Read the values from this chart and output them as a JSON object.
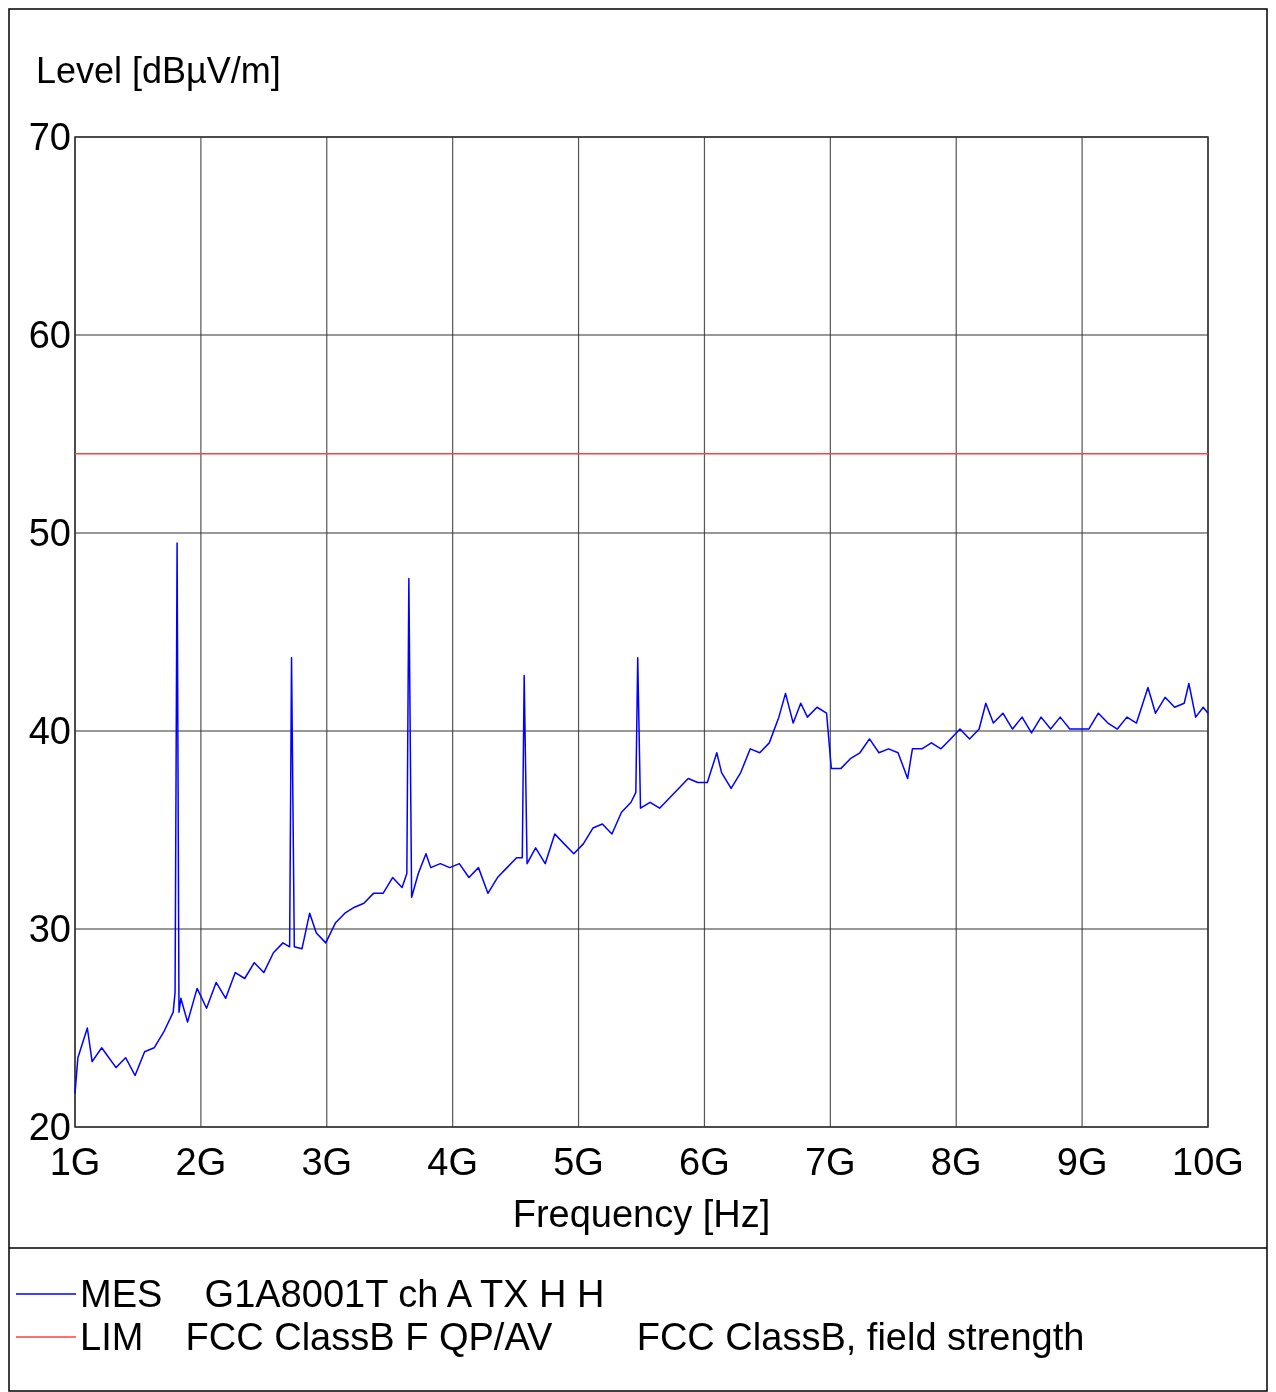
{
  "chart_data": {
    "type": "line",
    "xlabel": "Frequency [Hz]",
    "ylabel": "Level [dBµV/m]",
    "xlim": [
      1,
      10
    ],
    "ylim": [
      20,
      70
    ],
    "xticks": [
      {
        "value": 1,
        "label": "1G"
      },
      {
        "value": 2,
        "label": "2G"
      },
      {
        "value": 3,
        "label": "3G"
      },
      {
        "value": 4,
        "label": "4G"
      },
      {
        "value": 5,
        "label": "5G"
      },
      {
        "value": 6,
        "label": "6G"
      },
      {
        "value": 7,
        "label": "7G"
      },
      {
        "value": 8,
        "label": "8G"
      },
      {
        "value": 9,
        "label": "9G"
      },
      {
        "value": 10,
        "label": "10G"
      }
    ],
    "yticks": [
      20,
      30,
      40,
      50,
      60,
      70
    ],
    "grid": true,
    "legend": "bottom",
    "series": [
      {
        "name": "MES    G1A8001T ch A TX H H",
        "color": "#0000ff",
        "x": [
          1.0,
          1.023,
          1.098,
          1.136,
          1.212,
          1.326,
          1.402,
          1.477,
          1.553,
          1.629,
          1.705,
          1.78,
          1.795,
          1.811,
          1.826,
          1.841,
          1.894,
          1.97,
          2.045,
          2.121,
          2.197,
          2.273,
          2.348,
          2.424,
          2.5,
          2.576,
          2.652,
          2.705,
          2.72,
          2.742,
          2.803,
          2.864,
          2.917,
          2.992,
          3.068,
          3.144,
          3.22,
          3.295,
          3.371,
          3.447,
          3.523,
          3.598,
          3.636,
          3.652,
          3.674,
          3.727,
          3.788,
          3.826,
          3.902,
          3.977,
          4.053,
          4.129,
          4.205,
          4.28,
          4.356,
          4.432,
          4.508,
          4.553,
          4.568,
          4.591,
          4.659,
          4.735,
          4.811,
          4.886,
          4.962,
          5.038,
          5.114,
          5.189,
          5.265,
          5.341,
          5.417,
          5.455,
          5.47,
          5.492,
          5.568,
          5.644,
          5.72,
          5.795,
          5.871,
          5.947,
          6.023,
          6.098,
          6.136,
          6.212,
          6.288,
          6.364,
          6.439,
          6.515,
          6.591,
          6.644,
          6.705,
          6.765,
          6.818,
          6.894,
          6.97,
          7.008,
          7.083,
          7.159,
          7.235,
          7.311,
          7.386,
          7.462,
          7.538,
          7.614,
          7.652,
          7.727,
          7.803,
          7.879,
          7.955,
          8.03,
          8.106,
          8.182,
          8.235,
          8.295,
          8.371,
          8.447,
          8.523,
          8.598,
          8.674,
          8.75,
          8.826,
          8.902,
          8.977,
          9.053,
          9.129,
          9.205,
          9.28,
          9.356,
          9.432,
          9.523,
          9.583,
          9.659,
          9.735,
          9.811,
          9.848,
          9.902,
          9.962,
          10.0
        ],
        "values": [
          21.7,
          23.5,
          25.0,
          23.3,
          24.0,
          23.0,
          23.5,
          22.6,
          23.8,
          24.0,
          24.8,
          25.8,
          26.8,
          49.5,
          25.8,
          26.5,
          25.3,
          27.0,
          26.0,
          27.3,
          26.5,
          27.8,
          27.5,
          28.3,
          27.8,
          28.8,
          29.3,
          29.1,
          43.7,
          29.1,
          29.0,
          30.8,
          29.8,
          29.3,
          30.3,
          30.8,
          31.1,
          31.3,
          31.8,
          31.8,
          32.6,
          32.1,
          32.8,
          47.7,
          31.6,
          32.8,
          33.8,
          33.1,
          33.3,
          33.1,
          33.3,
          32.6,
          33.1,
          31.8,
          32.6,
          33.1,
          33.6,
          33.6,
          42.8,
          33.3,
          34.1,
          33.3,
          34.8,
          34.3,
          33.8,
          34.3,
          35.1,
          35.3,
          34.8,
          35.9,
          36.4,
          36.9,
          43.7,
          36.1,
          36.4,
          36.1,
          36.6,
          37.1,
          37.6,
          37.4,
          37.4,
          38.9,
          37.9,
          37.1,
          37.9,
          39.1,
          38.9,
          39.4,
          40.7,
          41.9,
          40.4,
          41.4,
          40.7,
          41.2,
          40.9,
          38.1,
          38.1,
          38.6,
          38.9,
          39.6,
          38.9,
          39.1,
          38.9,
          37.6,
          39.1,
          39.1,
          39.4,
          39.1,
          39.6,
          40.1,
          39.6,
          40.1,
          41.4,
          40.4,
          40.9,
          40.1,
          40.7,
          39.9,
          40.7,
          40.1,
          40.7,
          40.1,
          40.1,
          40.1,
          40.9,
          40.4,
          40.1,
          40.7,
          40.4,
          42.2,
          40.9,
          41.7,
          41.2,
          41.4,
          42.4,
          40.7,
          41.2,
          40.9
        ]
      },
      {
        "name": "LIM    FCC ClassB F QP/AV        FCC ClassB, field strength",
        "color": "#ff4040",
        "x": [
          1,
          10
        ],
        "values": [
          54,
          54
        ]
      }
    ]
  }
}
